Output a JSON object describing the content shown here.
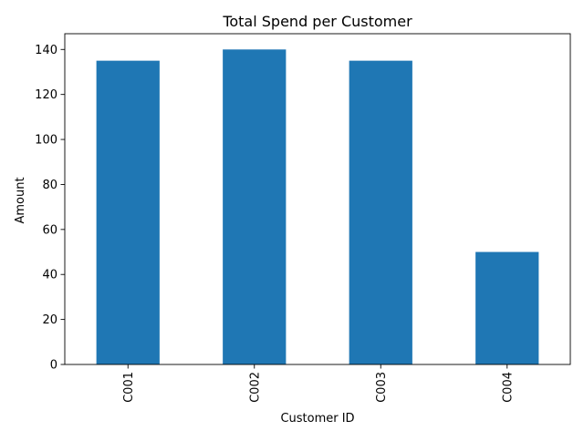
{
  "chart_data": {
    "type": "bar",
    "title": "Total Spend per Customer",
    "xlabel": "Customer ID",
    "ylabel": "Amount",
    "categories": [
      "C001",
      "C002",
      "C003",
      "C004"
    ],
    "values": [
      135,
      140,
      135,
      50
    ],
    "ylim": [
      0,
      147
    ],
    "yticks": [
      0,
      20,
      40,
      60,
      80,
      100,
      120,
      140
    ],
    "grid": false,
    "legend": "none",
    "bar_color": "#1f77b4",
    "x_tick_rotation": "vertical"
  }
}
